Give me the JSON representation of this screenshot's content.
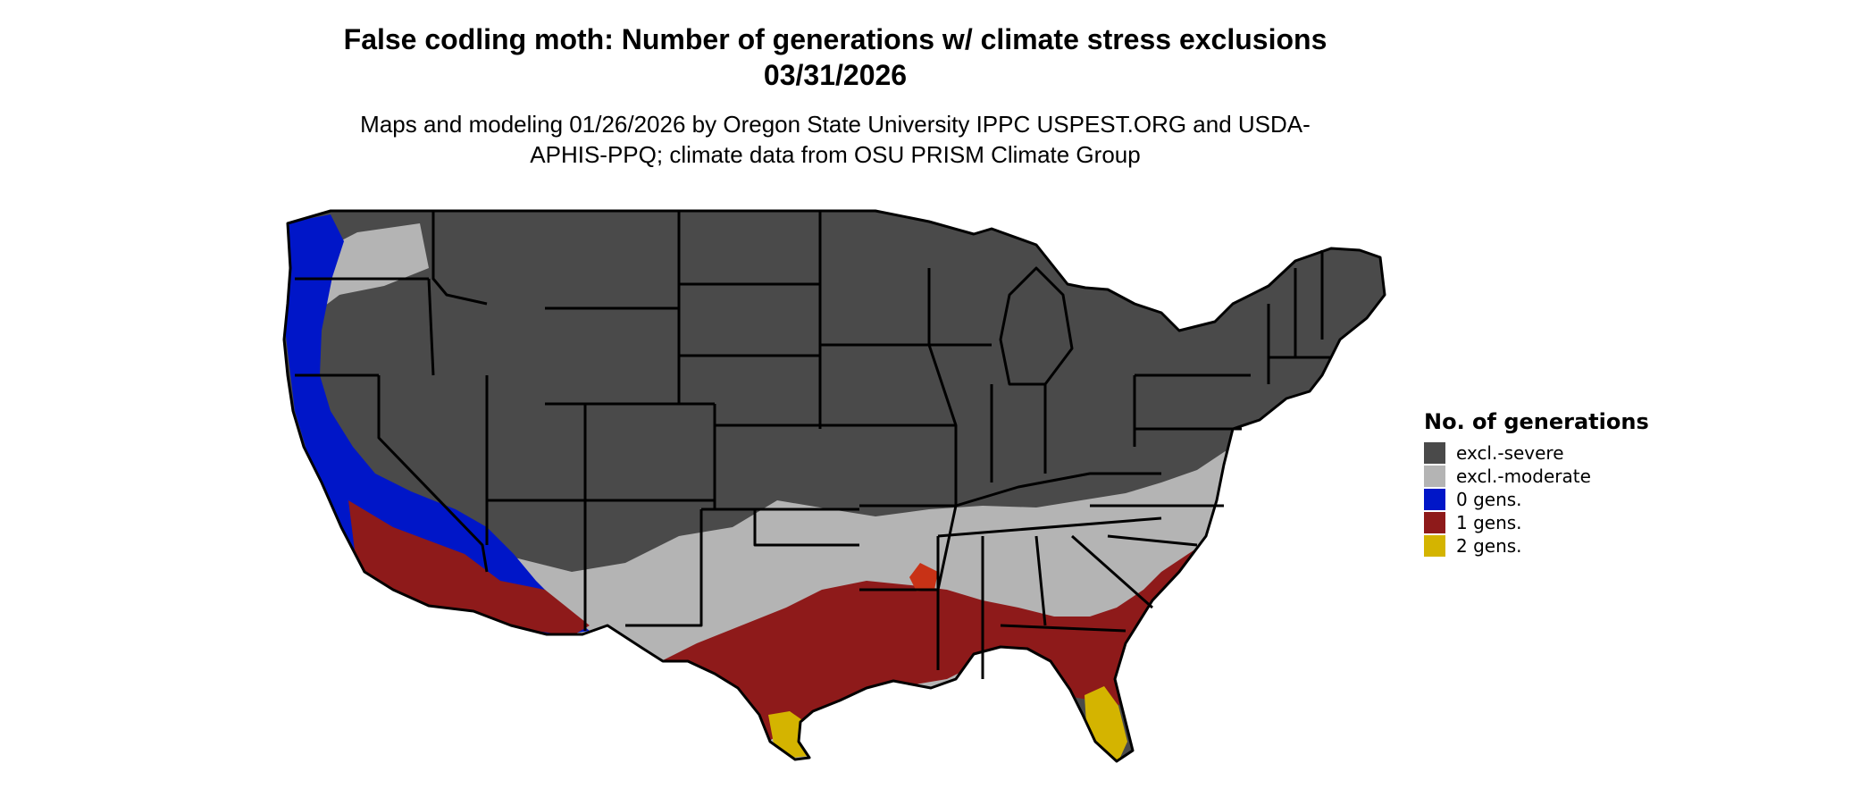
{
  "title": "False codling moth: Number of generations w/ climate stress exclusions 03/31/2026",
  "subtitle": "Maps and modeling 01/26/2026 by Oregon State University IPPC USPEST.ORG and USDA-APHIS-PPQ; climate data from OSU PRISM Climate Group",
  "colors": {
    "excl_severe": "#4a4a4a",
    "excl_moderate": "#b4b4b4",
    "zero_gens": "#0016c8",
    "one_gens": "#8e1a1a",
    "one_gens_alt": "#c83216",
    "two_gens": "#d4b400",
    "state_border": "#000000"
  },
  "legend": {
    "title": "No. of generations",
    "items": [
      {
        "label": "excl.-severe",
        "color": "#4a4a4a"
      },
      {
        "label": "excl.-moderate",
        "color": "#b4b4b4"
      },
      {
        "label": "0 gens.",
        "color": "#0016c8"
      },
      {
        "label": "1 gens.",
        "color": "#8e1a1a"
      },
      {
        "label": "2 gens.",
        "color": "#d4b400"
      }
    ]
  }
}
